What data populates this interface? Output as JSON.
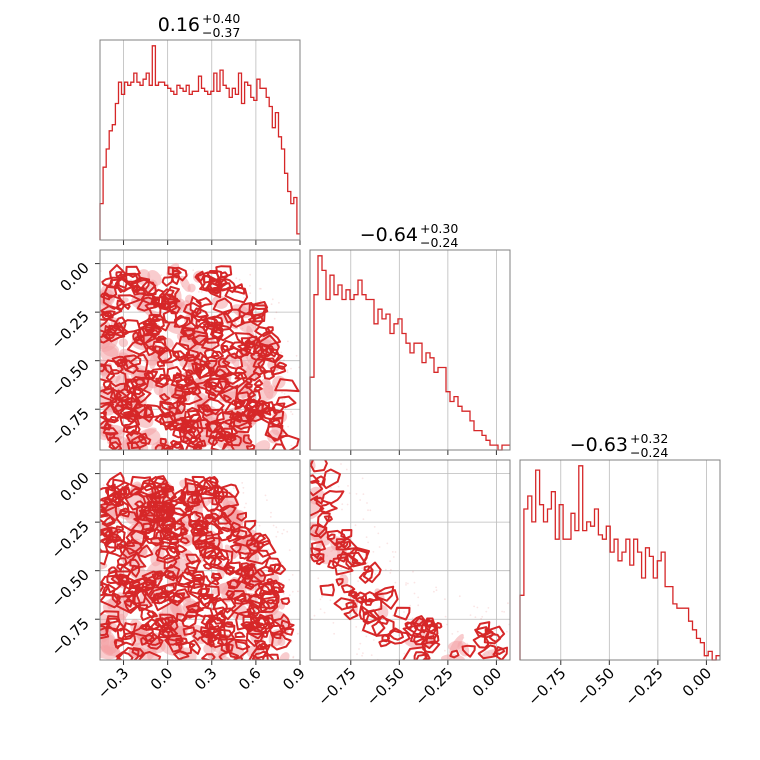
{
  "chart_data": {
    "type": "corner",
    "color": "#d62728",
    "fill_color": "#f4a3a5",
    "grid": true,
    "parameters": [
      {
        "title": {
          "median": "0.16",
          "plus": "+0.40",
          "minus": "−0.37"
        },
        "range": [
          -0.46,
          0.9
        ],
        "ticks": [
          -0.3,
          0.0,
          0.3,
          0.6,
          0.9
        ],
        "tick_labels": [
          "−0.3",
          "0.0",
          "0.3",
          "0.6",
          "0.9"
        ],
        "hist_edges": [
          -0.46,
          0.9
        ],
        "hist_counts": [
          12,
          24,
          30,
          36,
          38,
          45,
          52,
          48,
          52,
          51,
          52,
          55,
          52,
          51,
          53,
          55,
          51,
          64,
          51,
          52,
          52,
          51,
          50,
          49,
          48,
          51,
          50,
          49,
          51,
          48,
          49,
          49,
          54,
          50,
          49,
          48,
          49,
          55,
          49,
          56,
          51,
          50,
          47,
          50,
          48,
          55,
          45,
          52,
          51,
          47,
          46,
          53,
          50,
          50,
          47,
          44,
          37,
          42,
          34,
          30,
          22,
          16,
          12,
          14,
          2
        ]
      },
      {
        "title": {
          "median": "−0.64",
          "plus": "+0.30",
          "minus": "−0.24"
        },
        "range": [
          -0.96,
          0.07
        ],
        "ticks": [
          -0.75,
          -0.5,
          -0.25,
          0.0
        ],
        "yticks": [
          0.0,
          -0.25,
          -0.5,
          -0.75
        ],
        "tick_labels": [
          "−0.75",
          "−0.50",
          "−0.25",
          "0.00"
        ],
        "ytick_labels": [
          "0.00",
          "−0.25",
          "−0.50",
          "−0.75"
        ],
        "hist_edges": [
          -0.96,
          0.07
        ],
        "hist_counts": [
          15,
          32,
          40,
          37,
          31,
          36,
          32,
          34,
          31,
          33,
          31,
          32,
          35,
          32,
          31,
          31,
          26,
          29,
          27,
          28,
          24,
          26,
          27,
          24,
          22,
          20,
          22,
          22,
          18,
          20,
          19,
          16,
          17,
          17,
          12,
          10,
          11,
          9,
          8,
          8,
          6,
          4,
          4,
          3,
          2,
          1,
          1,
          0,
          1,
          1
        ]
      },
      {
        "title": {
          "median": "−0.63",
          "plus": "+0.32",
          "minus": "−0.24"
        },
        "range": [
          -0.96,
          0.07
        ],
        "ticks": [
          -0.75,
          -0.5,
          -0.25,
          0.0
        ],
        "yticks": [
          0.0,
          -0.25,
          -0.5,
          -0.75
        ],
        "tick_labels": [
          "−0.75",
          "−0.50",
          "−0.25",
          "0.00"
        ],
        "ytick_labels": [
          "0.00",
          "−0.25",
          "−0.50",
          "−0.75"
        ],
        "hist_edges": [
          -0.96,
          0.07
        ],
        "hist_counts": [
          15,
          35,
          38,
          32,
          44,
          36,
          32,
          35,
          39,
          28,
          36,
          28,
          28,
          34,
          30,
          45,
          30,
          32,
          31,
          35,
          29,
          28,
          31,
          25,
          28,
          23,
          25,
          28,
          22,
          28,
          25,
          19,
          26,
          24,
          19,
          23,
          25,
          17,
          17,
          13,
          12,
          12,
          12,
          9,
          7,
          5,
          4,
          1,
          2,
          0,
          1
        ]
      }
    ]
  }
}
